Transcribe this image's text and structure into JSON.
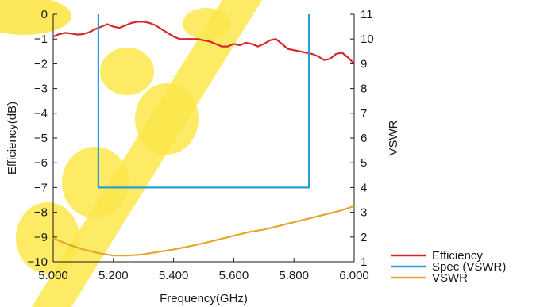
{
  "chart_data": {
    "type": "line",
    "xlabel": "Frequency(GHz)",
    "ylabel_left": "Efficiency(dB)",
    "ylabel_right": "VSWR",
    "xlim": [
      5.0,
      6.0
    ],
    "ylim_left": [
      -10,
      0
    ],
    "ylim_right": [
      1,
      11
    ],
    "x_ticks": [
      "5.000",
      "5.200",
      "5.400",
      "5.600",
      "5.800",
      "6.000"
    ],
    "y_left_ticks": [
      "0",
      "−1",
      "−2",
      "−3",
      "−4",
      "−5",
      "−6",
      "−7",
      "−8",
      "−9",
      "−10"
    ],
    "y_right_ticks": [
      "11",
      "10",
      "9",
      "8",
      "7",
      "6",
      "5",
      "4",
      "3",
      "2",
      "1"
    ],
    "legend_position": "bottom-right",
    "grid": false,
    "series": [
      {
        "name": "Efficiency",
        "axis": "left",
        "color": "#d9262c",
        "x": [
          5.0,
          5.02,
          5.04,
          5.06,
          5.08,
          5.1,
          5.12,
          5.14,
          5.16,
          5.18,
          5.2,
          5.22,
          5.24,
          5.26,
          5.28,
          5.3,
          5.32,
          5.34,
          5.36,
          5.38,
          5.4,
          5.42,
          5.44,
          5.46,
          5.48,
          5.5,
          5.52,
          5.54,
          5.56,
          5.58,
          5.6,
          5.62,
          5.64,
          5.66,
          5.68,
          5.7,
          5.72,
          5.74,
          5.76,
          5.78,
          5.8,
          5.82,
          5.84,
          5.86,
          5.88,
          5.9,
          5.92,
          5.94,
          5.96,
          5.98,
          6.0
        ],
        "y": [
          -0.9,
          -0.8,
          -0.75,
          -0.78,
          -0.82,
          -0.8,
          -0.72,
          -0.6,
          -0.5,
          -0.4,
          -0.5,
          -0.55,
          -0.45,
          -0.35,
          -0.3,
          -0.3,
          -0.35,
          -0.45,
          -0.6,
          -0.75,
          -0.9,
          -1.0,
          -1.0,
          -1.0,
          -1.0,
          -1.05,
          -1.1,
          -1.2,
          -1.3,
          -1.3,
          -1.2,
          -1.25,
          -1.15,
          -1.2,
          -1.3,
          -1.2,
          -1.05,
          -1.0,
          -1.2,
          -1.4,
          -1.45,
          -1.5,
          -1.55,
          -1.6,
          -1.7,
          -1.85,
          -1.8,
          -1.6,
          -1.55,
          -1.75,
          -2.0
        ]
      },
      {
        "name": "Spec (VSWR)",
        "axis": "right",
        "color": "#2a9fd6",
        "x": [
          5.15,
          5.15,
          5.85,
          5.85
        ],
        "y": [
          11,
          4,
          4,
          11
        ]
      },
      {
        "name": "VSWR",
        "axis": "right",
        "color": "#e8a52b",
        "x": [
          5.0,
          5.05,
          5.1,
          5.15,
          5.2,
          5.25,
          5.3,
          5.35,
          5.4,
          5.45,
          5.5,
          5.55,
          5.6,
          5.65,
          5.7,
          5.75,
          5.8,
          5.85,
          5.9,
          5.95,
          6.0
        ],
        "y": [
          1.95,
          1.7,
          1.5,
          1.35,
          1.25,
          1.25,
          1.3,
          1.4,
          1.5,
          1.62,
          1.75,
          1.9,
          2.05,
          2.2,
          2.3,
          2.45,
          2.6,
          2.75,
          2.9,
          3.05,
          3.25
        ]
      }
    ]
  }
}
